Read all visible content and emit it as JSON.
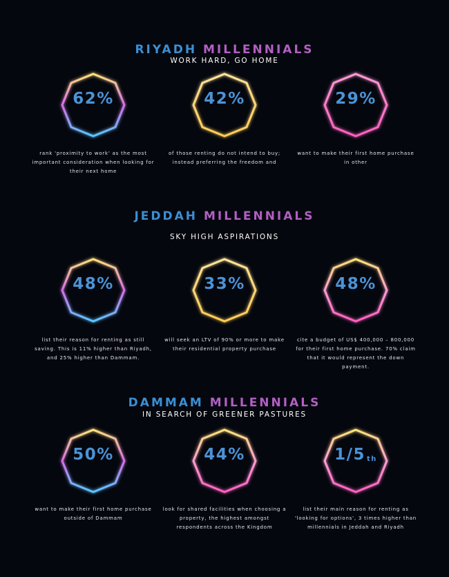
{
  "riyadh": {
    "title_a": "RIYADH",
    "title_b": "MILLENNIALS",
    "subtitle": "WORK HARD, GO HOME",
    "stats": [
      {
        "value": "62%",
        "caption": "rank 'proximity to work' as the most important consideration when looking for their next home"
      },
      {
        "value": "42%",
        "caption": "of those renting do not intend to buy; instead preferring the freedom and"
      },
      {
        "value": "29%",
        "caption": "want to make their first home purchase in other"
      }
    ]
  },
  "jeddah": {
    "title_a": "JEDDAH",
    "title_b": "MILLENNIALS",
    "subtitle": "SKY HIGH ASPIRATIONS",
    "stats": [
      {
        "value": "48%",
        "caption": "list their reason for renting as still saving. This is 11% higher than Riyadh, and 25% higher than Dammam."
      },
      {
        "value": "33%",
        "caption": "will seek an LTV of 90% or more to make their residential property purchase"
      },
      {
        "value": "48%",
        "caption": "cite a budget of US$ 400,000 – 800,000 for their first home purchase. 70% claim that it would represent the down payment."
      }
    ]
  },
  "dammam": {
    "title_a": "DAMMAM",
    "title_b": "MILLENNIALS",
    "subtitle": "IN SEARCH OF GREENER PASTURES",
    "stats": [
      {
        "value": "50%",
        "caption": "want to make their first home purchase outside of Dammam"
      },
      {
        "value": "44%",
        "caption": "look for shared facilities when choosing a property, the highest amongst respondents across the Kingdom"
      },
      {
        "value": "1/5",
        "value_sup": "th",
        "caption": "list their main reason for renting as 'looking for options', 3 times higher than millennials in Jeddah and Riyadh"
      }
    ]
  },
  "colors": {
    "background": "#05070e",
    "title_blue": "#3b8fd4",
    "title_purple": "#b35fc4",
    "value_blue": "#4b93d6",
    "neon_yellow": "#ffd76a",
    "neon_pink": "#ff5fc0",
    "neon_blue": "#58b6ff"
  }
}
